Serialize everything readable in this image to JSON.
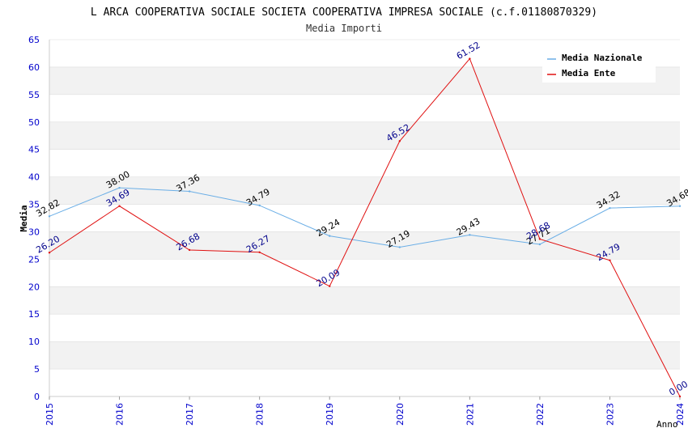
{
  "chart_data": {
    "type": "line",
    "title": "L ARCA COOPERATIVA SOCIALE SOCIETA COOPERATIVA IMPRESA SOCIALE (c.f.01180870329)",
    "subtitle": "Media Importi",
    "xlabel": "Anno",
    "ylabel": "Media",
    "categories": [
      "2015",
      "2016",
      "2017",
      "2018",
      "2019",
      "2020",
      "2021",
      "2022",
      "2023",
      "2024"
    ],
    "ylim": [
      0,
      65
    ],
    "yticks": [
      0,
      5,
      10,
      15,
      20,
      25,
      30,
      35,
      40,
      45,
      50,
      55,
      60,
      65
    ],
    "grid": "horizontal-bands",
    "legend_position": "top-right",
    "series": [
      {
        "name": "Media Nazionale",
        "color": "#6aaee6",
        "label_color": "#000000",
        "values": [
          32.82,
          38.0,
          37.36,
          34.79,
          29.24,
          27.19,
          29.43,
          27.71,
          34.32,
          34.68
        ],
        "labels": [
          "32.82",
          "38.00",
          "37.36",
          "34.79",
          "29.24",
          "27.19",
          "29.43",
          "27.71",
          "34.32",
          "34.68"
        ]
      },
      {
        "name": "Media Ente",
        "color": "#e01010",
        "label_color": "#00008b",
        "values": [
          26.2,
          34.69,
          26.68,
          26.27,
          20.09,
          46.52,
          61.52,
          28.68,
          24.79,
          0.0
        ],
        "labels": [
          "26.20",
          "34.69",
          "26.68",
          "26.27",
          "20.09",
          "46.52",
          "61.52",
          "28.68",
          "24.79",
          "0.00"
        ]
      }
    ]
  }
}
